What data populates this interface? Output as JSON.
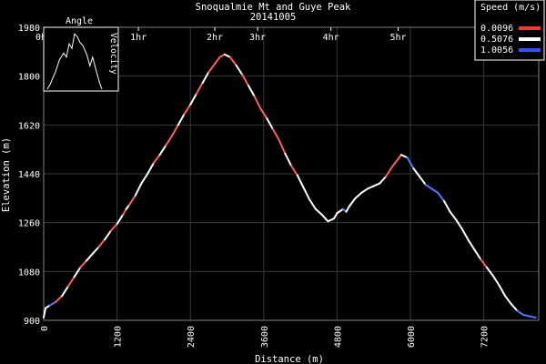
{
  "chart_data": {
    "type": "line",
    "title": "Snoqualmie Mt and Guye Peak",
    "subtitle": "20141005",
    "xlabel": "Distance (m)",
    "ylabel": "Elevation (m)",
    "xlim": [
      0,
      8100
    ],
    "ylim": [
      900,
      1980
    ],
    "xticks": [
      0,
      1200,
      2400,
      3600,
      4800,
      6000,
      7200
    ],
    "yticks": [
      900,
      1080,
      1260,
      1440,
      1620,
      1800,
      1980
    ],
    "grid": true,
    "time_axis": {
      "labels": [
        "0hr",
        "1hr",
        "2hr",
        "3hr",
        "4hr",
        "5hr"
      ],
      "positions_m": [
        0,
        1550,
        2800,
        3500,
        4700,
        5800
      ]
    },
    "legend": {
      "title": "Speed (m/s)",
      "position": "top-right",
      "entries": [
        {
          "label": "0.0096",
          "color": "#ff3333"
        },
        {
          "label": "0.5076",
          "color": "#ffffff"
        },
        {
          "label": "1.0056",
          "color": "#3355ff"
        }
      ]
    },
    "inset": {
      "title": "Angle",
      "ylabel": "Velocity",
      "series": [
        [
          0,
          0
        ],
        [
          0.05,
          0.08
        ],
        [
          0.15,
          0.3
        ],
        [
          0.22,
          0.5
        ],
        [
          0.3,
          0.62
        ],
        [
          0.35,
          0.55
        ],
        [
          0.4,
          0.78
        ],
        [
          0.45,
          0.7
        ],
        [
          0.5,
          0.95
        ],
        [
          0.55,
          0.9
        ],
        [
          0.6,
          0.8
        ],
        [
          0.65,
          0.75
        ],
        [
          0.72,
          0.6
        ],
        [
          0.78,
          0.4
        ],
        [
          0.83,
          0.55
        ],
        [
          0.9,
          0.3
        ],
        [
          0.96,
          0.1
        ],
        [
          1,
          0
        ]
      ]
    },
    "series": [
      {
        "x": [
          0,
          30,
          100,
          200,
          300,
          400,
          500,
          600,
          700,
          800,
          900,
          1000,
          1100,
          1200,
          1300,
          1350,
          1400,
          1500,
          1600,
          1700,
          1800,
          1900,
          2000,
          2100,
          2200,
          2300,
          2400,
          2500,
          2600,
          2700,
          2800,
          2880,
          2960,
          3050,
          3150,
          3250,
          3350,
          3450,
          3550,
          3650,
          3750,
          3850,
          3950,
          4050,
          4150,
          4250,
          4350,
          4450,
          4550,
          4650,
          4750,
          4800,
          4900,
          4950,
          5000,
          5100,
          5200,
          5300,
          5400,
          5500,
          5600,
          5700,
          5800,
          5850,
          5950,
          6050,
          6150,
          6250,
          6350,
          6450,
          6550,
          6650,
          6750,
          6850,
          6950,
          7050,
          7150,
          7250,
          7350,
          7450,
          7550,
          7650,
          7750,
          7850,
          7950,
          8050
        ],
        "elevation": [
          910,
          945,
          955,
          968,
          990,
          1025,
          1060,
          1095,
          1120,
          1145,
          1170,
          1198,
          1230,
          1255,
          1290,
          1310,
          1325,
          1360,
          1405,
          1440,
          1480,
          1510,
          1545,
          1580,
          1620,
          1660,
          1695,
          1735,
          1775,
          1815,
          1845,
          1870,
          1880,
          1870,
          1840,
          1805,
          1765,
          1725,
          1680,
          1645,
          1605,
          1565,
          1515,
          1470,
          1435,
          1390,
          1345,
          1310,
          1290,
          1265,
          1275,
          1295,
          1310,
          1300,
          1320,
          1350,
          1370,
          1385,
          1395,
          1405,
          1430,
          1465,
          1495,
          1510,
          1500,
          1460,
          1430,
          1400,
          1385,
          1370,
          1340,
          1300,
          1270,
          1235,
          1195,
          1160,
          1125,
          1095,
          1065,
          1030,
          990,
          960,
          935,
          920,
          915,
          910
        ],
        "speed": [
          0.5,
          0.5,
          1.0,
          0.2,
          0.5,
          0.3,
          0.5,
          0.3,
          0.5,
          0.5,
          0.3,
          0.5,
          0.3,
          0.5,
          0.3,
          0.5,
          0.3,
          0.4,
          0.5,
          0.4,
          0.3,
          0.4,
          0.2,
          0.3,
          0.4,
          0.3,
          0.4,
          0.3,
          0.4,
          0.3,
          0.2,
          0.1,
          0.5,
          0.3,
          0.4,
          0.3,
          0.4,
          0.3,
          0.3,
          0.4,
          0.3,
          0.3,
          0.4,
          0.3,
          0.4,
          0.5,
          0.5,
          0.6,
          0.5,
          0.6,
          0.7,
          0.5,
          0.9,
          0.6,
          0.5,
          0.5,
          0.6,
          0.5,
          0.4,
          0.4,
          0.3,
          0.3,
          0.2,
          0.6,
          0.8,
          0.6,
          0.5,
          0.9,
          1.0,
          0.9,
          0.6,
          0.5,
          0.4,
          0.5,
          0.4,
          0.5,
          0.3,
          0.5,
          0.4,
          0.5,
          0.5,
          0.7,
          0.9,
          1.0,
          1.0,
          1.0
        ]
      }
    ]
  }
}
